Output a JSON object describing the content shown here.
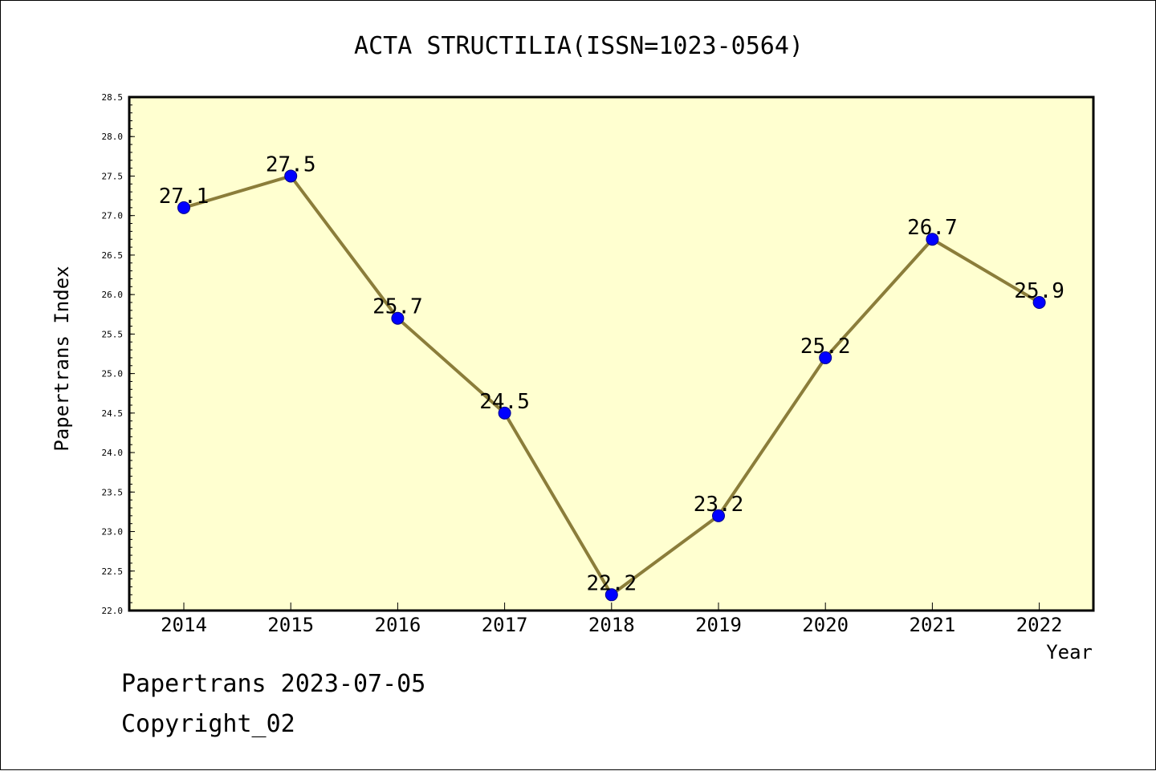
{
  "chart_data": {
    "type": "line",
    "title": "ACTA STRUCTILIA(ISSN=1023-0564)",
    "xlabel": "Year",
    "ylabel": "Papertrans Index",
    "categories": [
      "2014",
      "2015",
      "2016",
      "2017",
      "2018",
      "2019",
      "2020",
      "2021",
      "2022"
    ],
    "series": [
      {
        "values": [
          27.1,
          27.5,
          25.7,
          24.5,
          22.2,
          23.2,
          25.2,
          26.7,
          25.9
        ]
      }
    ],
    "data_labels": [
      "27.1",
      "27.5",
      "25.7",
      "24.5",
      "22.2",
      "23.2",
      "25.2",
      "26.7",
      "25.9"
    ],
    "ylim": [
      22.0,
      28.5
    ],
    "yticks": [
      "22.0",
      "22.5",
      "23.0",
      "23.5",
      "24.0",
      "24.5",
      "25.0",
      "25.5",
      "26.0",
      "26.5",
      "27.0",
      "27.5",
      "28.0",
      "28.5"
    ],
    "legend": "none",
    "grid": false,
    "colors": {
      "plot_background": "#ffffd0",
      "line": "#8b7d3a",
      "marker": "#0000ff"
    }
  },
  "footer": {
    "watermark": "Papertrans 2023-07-05",
    "copyright": "Copyright_02"
  }
}
